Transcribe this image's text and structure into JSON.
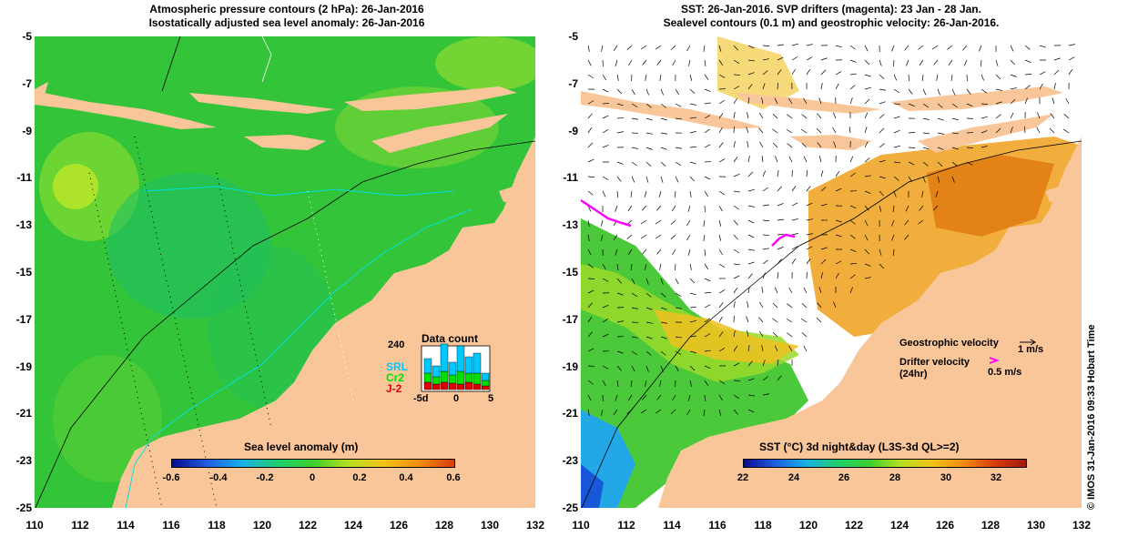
{
  "left_panel": {
    "title_line1": "Atmospheric pressure contours (2 hPa): 26-Jan-2016",
    "title_line2": "Isostatically adjusted sea level anomaly: 26-Jan-2016",
    "y_ticks": [
      "-5",
      "-7",
      "-9",
      "-11",
      "-13",
      "-15",
      "-17",
      "-19",
      "-21",
      "-23",
      "-25"
    ],
    "x_ticks": [
      "110",
      "112",
      "114",
      "116",
      "118",
      "120",
      "122",
      "124",
      "126",
      "128",
      "130",
      "132"
    ],
    "colorbar_title": "Sea level anomaly (m)",
    "colorbar_ticks": [
      "-0.6",
      "-0.4",
      "-0.2",
      "0",
      "0.2",
      "0.4",
      "0.6"
    ],
    "data_count": {
      "title": "Data count",
      "y_label": "240",
      "x_ticks": [
        "-5d",
        "0",
        "5"
      ],
      "sat_labels": [
        "SRL",
        "Cr2",
        "J-2"
      ],
      "sat_colors": [
        "#00c8ff",
        "#00e000",
        "#e00000"
      ]
    }
  },
  "right_panel": {
    "title_line1": "SST: 26-Jan-2016. SVP drifters (magenta): 23 Jan - 28 Jan.",
    "title_line2": "Sealevel contours (0.1 m) and geostrophic velocity: 26-Jan-2016.",
    "y_ticks": [
      "-5",
      "-7",
      "-9",
      "-11",
      "-13",
      "-15",
      "-17",
      "-19",
      "-21",
      "-23",
      "-25"
    ],
    "x_ticks": [
      "110",
      "112",
      "114",
      "116",
      "118",
      "120",
      "122",
      "124",
      "126",
      "128",
      "130",
      "132"
    ],
    "colorbar_title": "SST (°C) 3d night&day (L3S-3d QL>=2)",
    "colorbar_ticks": [
      "22",
      "24",
      "26",
      "28",
      "30",
      "32"
    ],
    "legend_geo": "Geostrophic velocity",
    "legend_geo_value": "1 m/s",
    "legend_drifter_line1": "Drifter velocity",
    "legend_drifter_line2": "(24hr)",
    "legend_drifter_value": "0.5 m/s"
  },
  "credit": "© IMOS 31-Jan-2016 09:33 Hobart Time",
  "colors": {
    "land": "#f9c69a",
    "ocean_left": "#2fc33a",
    "ocean_right": "#ffffff",
    "drifter": "#ff00ff",
    "contour_cyan": "#00e0e0"
  }
}
